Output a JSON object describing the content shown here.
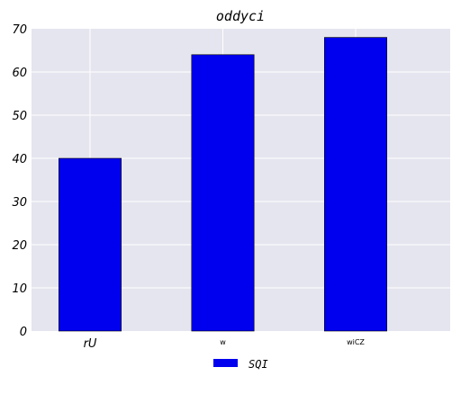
{
  "chart_data": {
    "type": "bar",
    "title": "oddyci",
    "categories": [
      "rU",
      "w",
      "wiCZ"
    ],
    "series": [
      {
        "name": "SQI",
        "values": [
          40,
          64,
          68
        ],
        "color": "#0000ee"
      }
    ],
    "ylim": [
      0,
      70
    ],
    "yticks": [
      0,
      10,
      20,
      30,
      40,
      50,
      60,
      70
    ],
    "xlabel": "",
    "ylabel": "",
    "grid": true,
    "background": "#e5e5ef",
    "legend": "bottom-center"
  }
}
